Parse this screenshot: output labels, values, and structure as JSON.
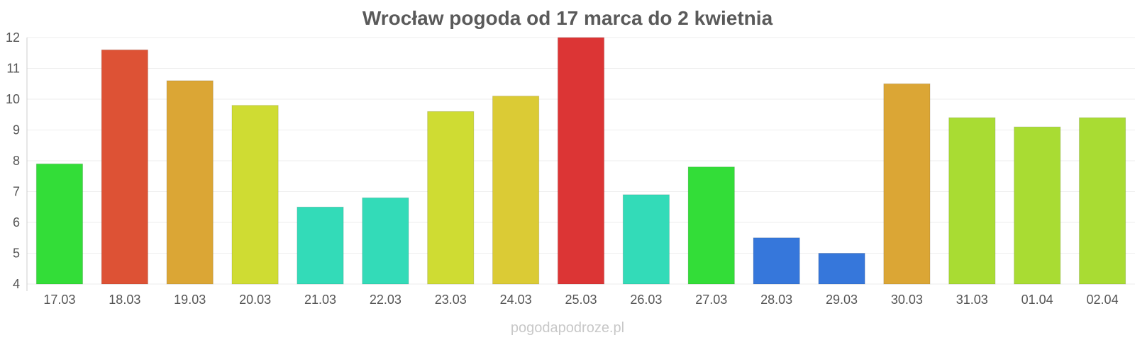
{
  "chart_data": {
    "type": "bar",
    "title": "Wrocław pogoda od 17 marca do 2 kwietnia",
    "xlabel": "",
    "ylabel": "",
    "ylim": [
      4,
      12
    ],
    "yticks": [
      4,
      5,
      6,
      7,
      8,
      9,
      10,
      11,
      12
    ],
    "grid": true,
    "categories": [
      "17.03",
      "18.03",
      "19.03",
      "20.03",
      "21.03",
      "22.03",
      "23.03",
      "24.03",
      "25.03",
      "26.03",
      "27.03",
      "28.03",
      "29.03",
      "30.03",
      "31.03",
      "01.04",
      "02.04"
    ],
    "values": [
      7.9,
      11.6,
      10.6,
      9.8,
      6.5,
      6.8,
      9.6,
      10.1,
      12.0,
      6.9,
      7.8,
      5.5,
      5.0,
      10.5,
      9.4,
      9.1,
      9.4
    ],
    "colors": [
      "#33dd38",
      "#dd5235",
      "#dba635",
      "#cfdc33",
      "#33dbb8",
      "#33dbb8",
      "#cfdc33",
      "#dbcb35",
      "#dc3535",
      "#33dbb8",
      "#33dd38",
      "#3677db",
      "#3677db",
      "#dba635",
      "#a9dc33",
      "#a9dc33",
      "#a9dc33"
    ]
  },
  "watermark": "pogodapodroze.pl"
}
